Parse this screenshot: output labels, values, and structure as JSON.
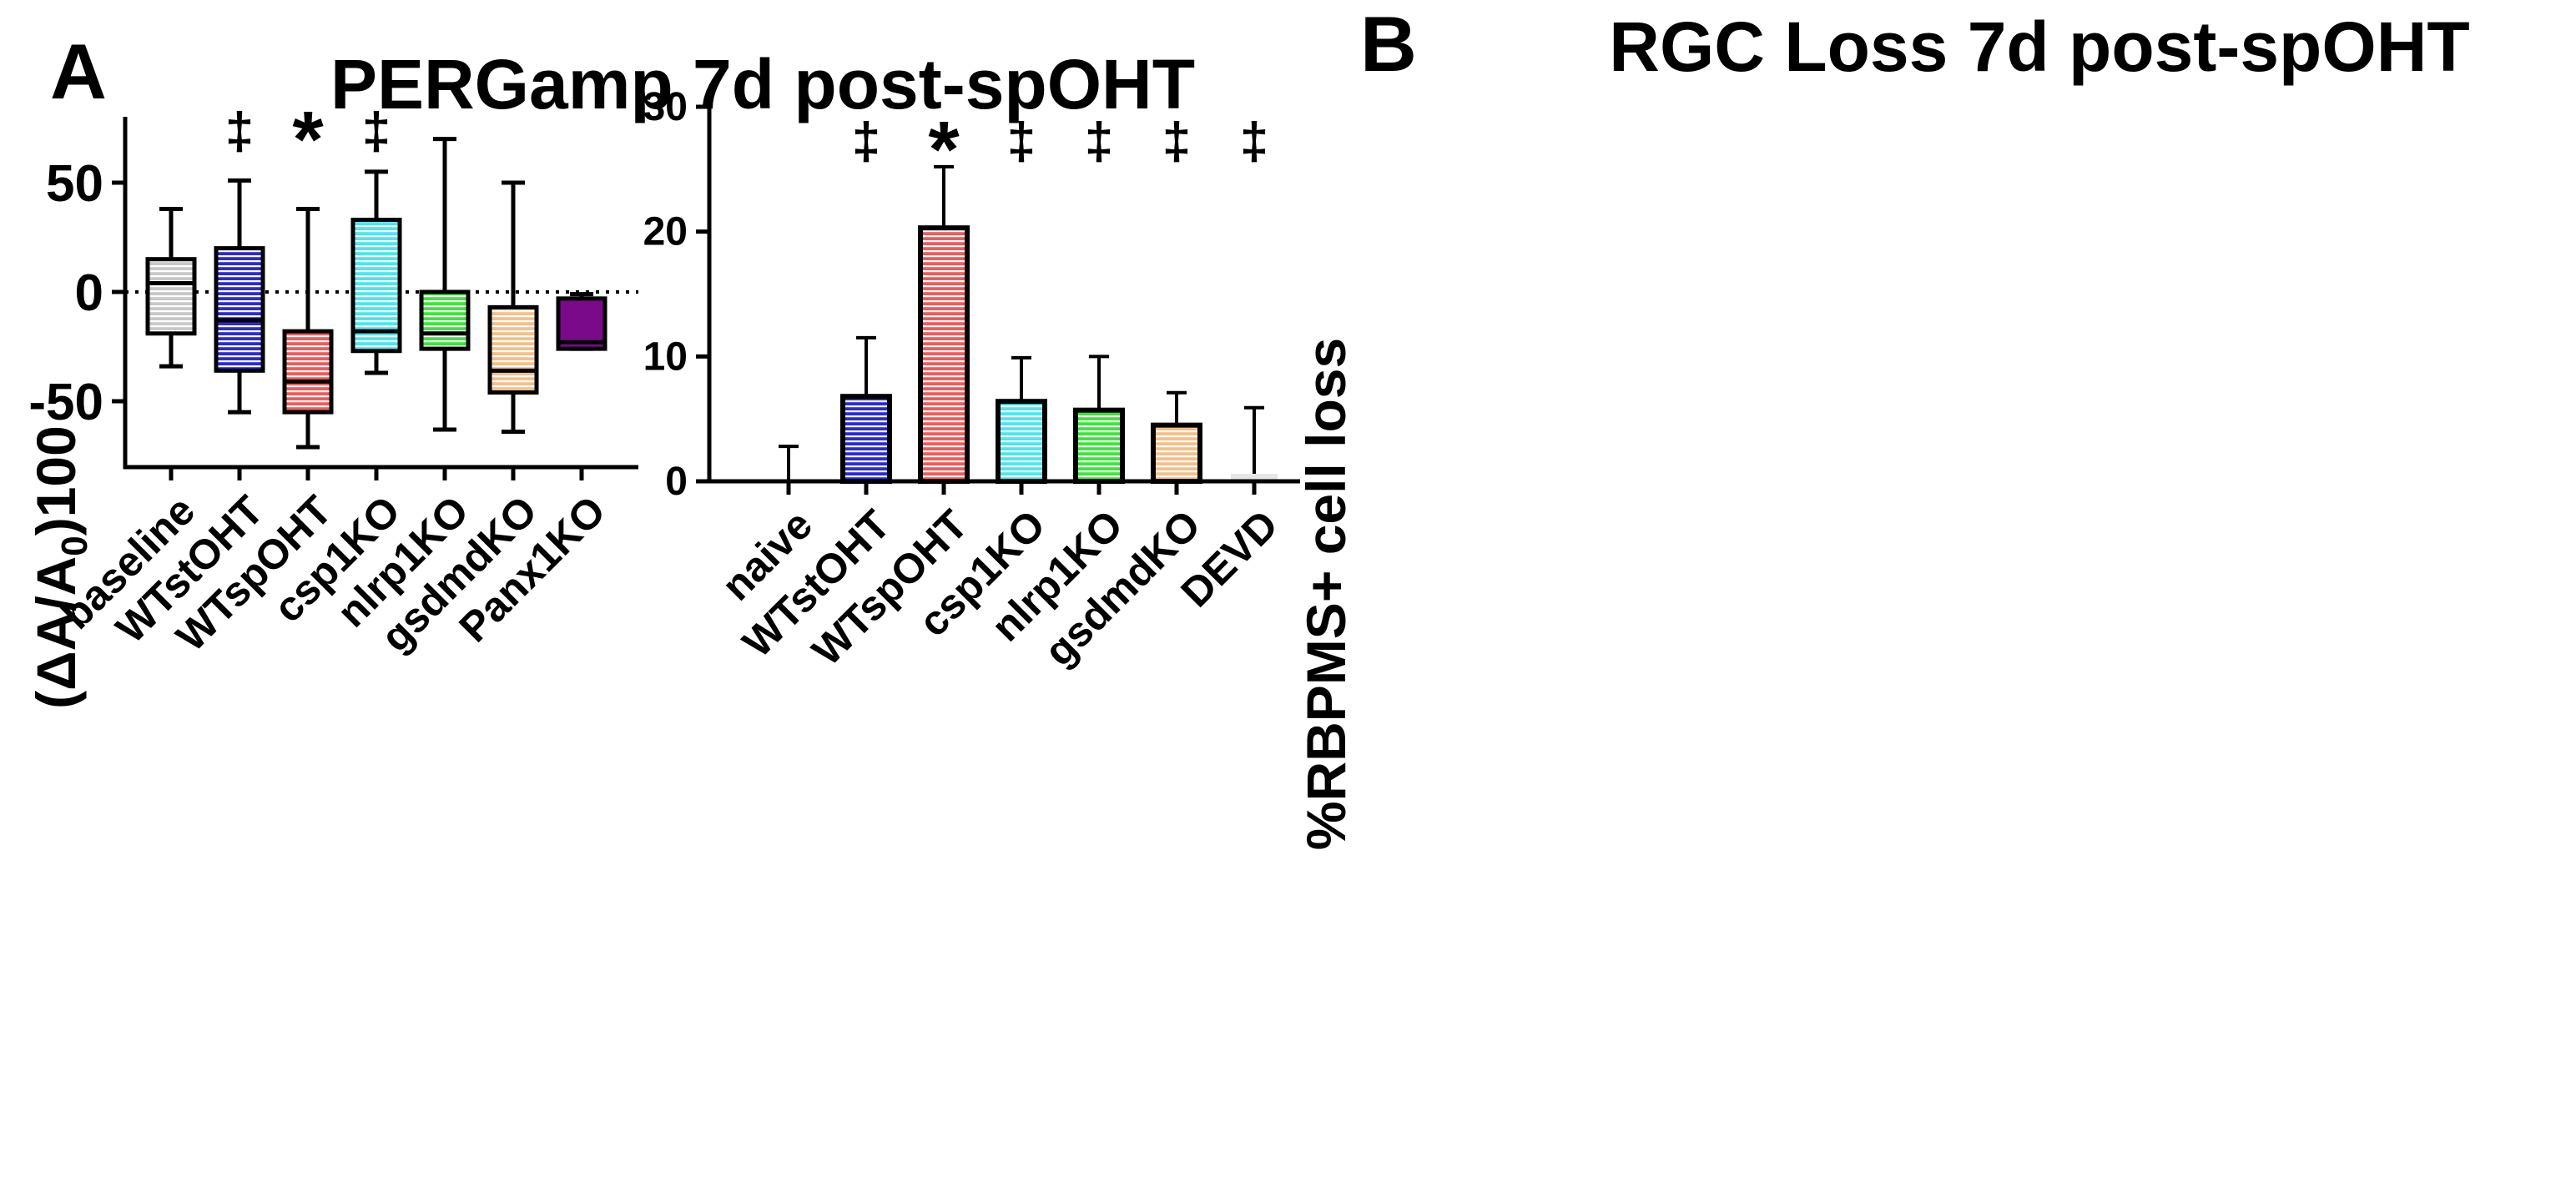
{
  "panels": [
    {
      "letter": "A"
    },
    {
      "letter": "B"
    }
  ],
  "chart_data": [
    {
      "type": "boxplot",
      "panel": "A",
      "title": "PERGamp 7d post-spOHT",
      "ylabel": "(ΔA/A0)100",
      "ylabel_parts": {
        "pre": "(ΔA/A",
        "sub": "0",
        "post": ")100"
      },
      "xlabel": "",
      "ylim": [
        -80,
        80
      ],
      "yticks": [
        50,
        0,
        -50
      ],
      "ytick_labels": [
        "50",
        "0",
        "-50"
      ],
      "reference_line": 0,
      "categories": [
        "baseline",
        "WTstOHT",
        "WTspOHT",
        "csp1KO",
        "nlrp1KO",
        "gsdmdKO",
        "Panx1KO"
      ],
      "boxes": [
        {
          "min": -34,
          "q1": -19,
          "median": 4,
          "q3": 15,
          "max": 38,
          "color": "#c8c8c8",
          "fill": "#ffffff",
          "sig": ""
        },
        {
          "min": -55,
          "q1": -36,
          "median": -13,
          "q3": 20,
          "max": 51,
          "color": "#2b2bd6",
          "fill": "#ffffff",
          "sig": "‡"
        },
        {
          "min": -71,
          "q1": -55,
          "median": -41,
          "q3": -18,
          "max": 38,
          "color": "#f25a5a",
          "fill": "#ffffff",
          "sig": "*"
        },
        {
          "min": -37,
          "q1": -27,
          "median": -18,
          "q3": 33,
          "max": 55,
          "color": "#4de6ef",
          "fill": "#ffffff",
          "sig": "‡"
        },
        {
          "min": -63,
          "q1": -26,
          "median": -19,
          "q3": 0,
          "max": 70,
          "color": "#3ce63c",
          "fill": "#ffffff",
          "sig": ""
        },
        {
          "min": -64,
          "q1": -46,
          "median": -36,
          "q3": -7,
          "max": 50,
          "color": "#f5c08a",
          "fill": "#ffffff",
          "sig": ""
        },
        {
          "min": -26,
          "q1": -26,
          "median": -23,
          "q3": -3,
          "max": -1,
          "color": "#7a0a8a",
          "fill": "#7a0a8a",
          "sig": ""
        }
      ]
    },
    {
      "type": "bar",
      "panel": "B",
      "title": "RGC Loss 7d post-spOHT",
      "ylabel": "%RBPMS+ cell loss",
      "xlabel": "",
      "ylim": [
        0,
        30
      ],
      "yticks": [
        0,
        10,
        20,
        30
      ],
      "ytick_labels": [
        "0",
        "10",
        "20",
        "30"
      ],
      "categories": [
        "naive",
        "WTstOHT",
        "WTspOHT",
        "csp1KO",
        "nlrp1KO",
        "gsdmdKO",
        "DEVD"
      ],
      "values": [
        0,
        6.8,
        20.3,
        6.4,
        5.7,
        4.5,
        0.6
      ],
      "errors": [
        2.8,
        4.7,
        4.9,
        3.5,
        4.3,
        2.6,
        5.3
      ],
      "colors": [
        "#ffffff",
        "#2b2bd6",
        "#f25a5a",
        "#4de6ef",
        "#3ce63c",
        "#f5c08a",
        "#e6e6e6"
      ],
      "sig": [
        "",
        "‡",
        "*",
        "‡",
        "‡",
        "‡",
        "‡"
      ]
    }
  ]
}
